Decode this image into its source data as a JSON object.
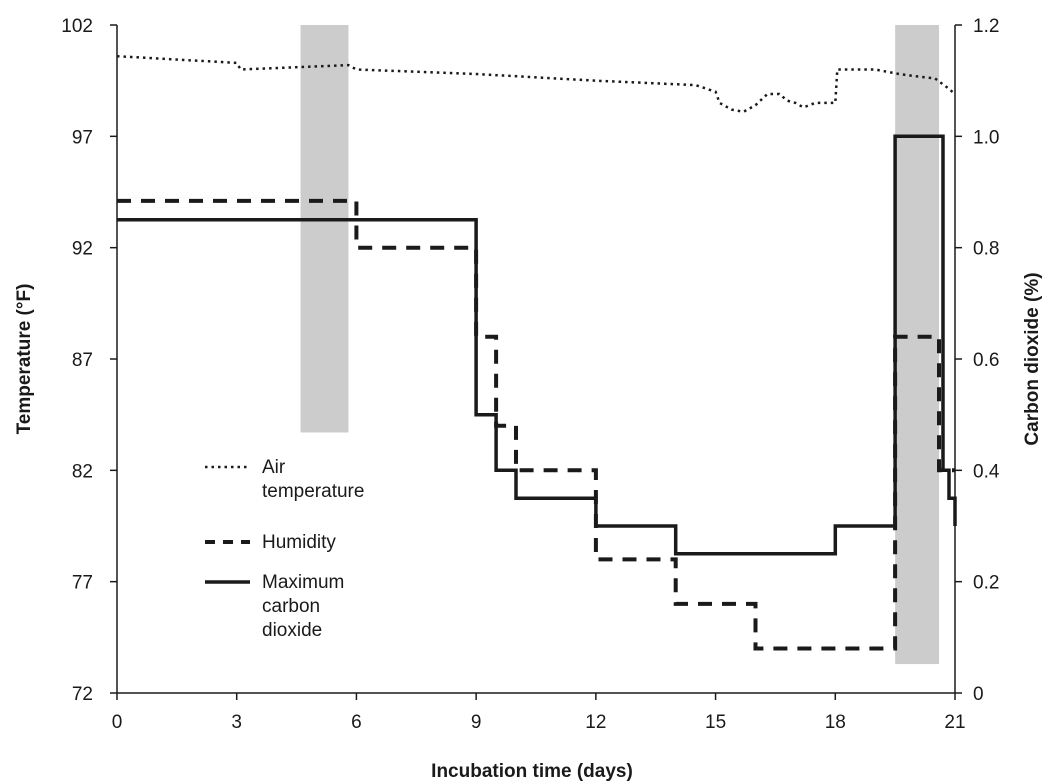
{
  "chart_data": {
    "type": "line",
    "title": "",
    "xlabel": "Incubation time (days)",
    "ylabel_left": "Temperature (°F)",
    "ylabel_right": "Carbon dioxide (%)",
    "xlim": [
      0,
      21
    ],
    "ylim_left": [
      72,
      102
    ],
    "ylim_right": [
      0,
      1.2
    ],
    "x_ticks": [
      0,
      3,
      6,
      9,
      12,
      15,
      18,
      21
    ],
    "y_left_ticks": [
      72,
      77,
      82,
      87,
      92,
      97,
      102
    ],
    "y_right_ticks": [
      "0",
      "0.2",
      "0.4",
      "0.6",
      "0.8",
      "1.0",
      "1.2"
    ],
    "grid": false,
    "legend_position": "bottom-left",
    "shaded_regions": [
      {
        "x_start": 4.6,
        "x_end": 5.8,
        "y_left_low": 83.7,
        "y_left_high": 102
      },
      {
        "x_start": 19.5,
        "x_end": 20.6,
        "y_left_low": 73.3,
        "y_left_high": 102
      }
    ],
    "series": [
      {
        "name": "Air temperature",
        "axis": "left",
        "style": "dotted",
        "x": [
          0,
          3,
          3.1,
          5.8,
          6,
          9,
          12,
          14.5,
          15,
          15.1,
          15.4,
          15.7,
          16.0,
          16.3,
          16.6,
          16.8,
          17.0,
          17.2,
          17.5,
          18,
          18.05,
          18.5,
          19,
          19.6,
          20.0,
          20.5,
          20.8,
          21
        ],
        "y": [
          100.6,
          100.3,
          100.0,
          100.2,
          100.0,
          99.8,
          99.5,
          99.3,
          99.0,
          98.5,
          98.2,
          98.1,
          98.4,
          98.9,
          98.9,
          98.6,
          98.5,
          98.3,
          98.5,
          98.5,
          100.0,
          100.0,
          100.0,
          99.8,
          99.7,
          99.6,
          99.2,
          98.9
        ]
      },
      {
        "name": "Humidity",
        "axis": "left",
        "style": "dashed",
        "x": [
          0,
          6,
          6,
          9,
          9,
          9.5,
          9.5,
          10,
          10,
          12,
          12,
          14,
          14,
          16,
          16,
          19.5,
          19.5,
          20.6,
          20.6,
          21
        ],
        "y": [
          94.1,
          94.1,
          92.0,
          92.0,
          88.0,
          88.0,
          84.0,
          84.0,
          82.0,
          82.0,
          78.0,
          78.0,
          76.0,
          76.0,
          74.0,
          74.0,
          88.0,
          88.0,
          82.0,
          82.0
        ]
      },
      {
        "name": "Maximum carbon dioxide",
        "axis": "right",
        "style": "solid",
        "x": [
          0,
          9,
          9,
          9.5,
          9.5,
          10,
          10,
          12,
          12,
          14,
          14,
          18,
          18,
          19.5,
          19.5,
          20.7,
          20.7,
          20.85,
          20.85,
          21,
          21
        ],
        "y": [
          0.85,
          0.85,
          0.5,
          0.5,
          0.4,
          0.4,
          0.35,
          0.35,
          0.3,
          0.3,
          0.25,
          0.25,
          0.3,
          0.3,
          1.0,
          1.0,
          0.4,
          0.4,
          0.35,
          0.35,
          0.3
        ]
      }
    ],
    "legend": [
      {
        "label_lines": [
          "Air",
          "temperature"
        ],
        "style": "dotted"
      },
      {
        "label_lines": [
          "Humidity"
        ],
        "style": "dashed"
      },
      {
        "label_lines": [
          "Maximum",
          "carbon",
          "dioxide"
        ],
        "style": "solid"
      }
    ],
    "colors": {
      "line": "#1a1a1a",
      "shade": "#cccccc",
      "axis": "#1a1a1a"
    }
  }
}
